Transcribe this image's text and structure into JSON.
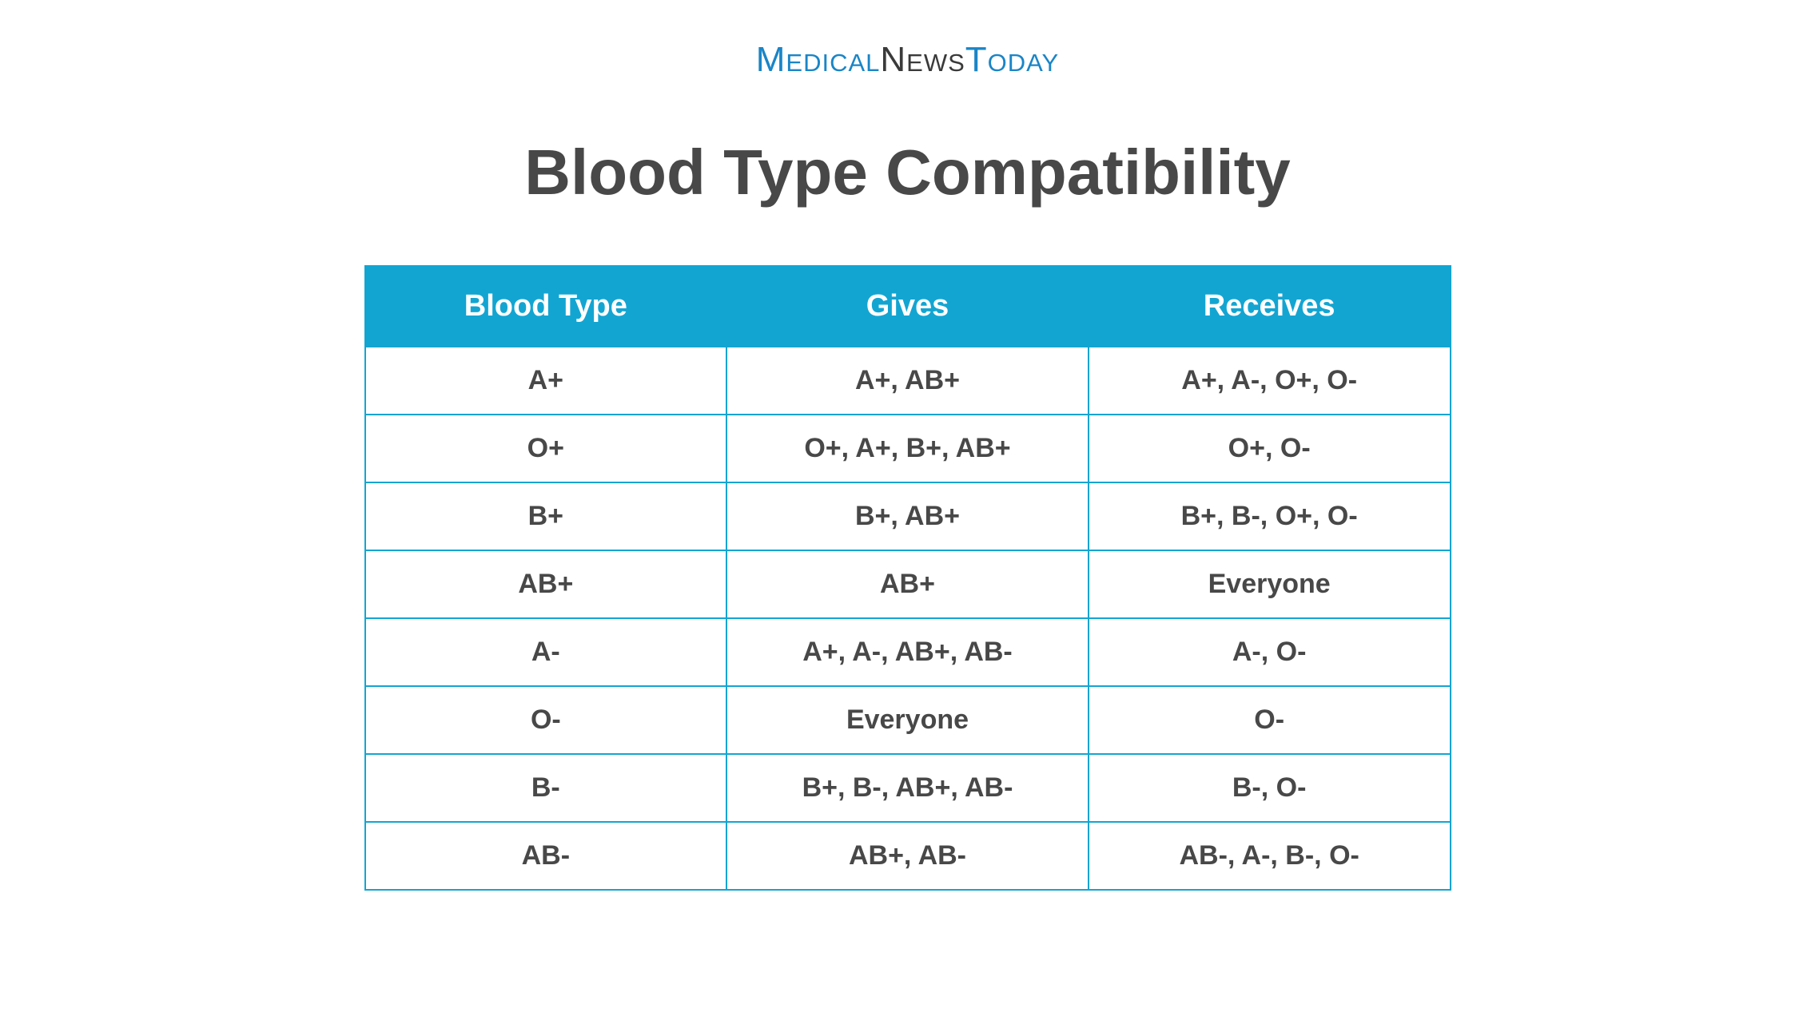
{
  "logo": {
    "part1": "Medical",
    "part2": "News",
    "part3": "Today"
  },
  "title": "Blood Type Compatibility",
  "table": {
    "type": "table",
    "header_bg": "#13a5d2",
    "header_text_color": "#ffffff",
    "border_color": "#13a5d2",
    "cell_bg": "#ffffff",
    "cell_text_color": "#484848",
    "header_fontsize": 38,
    "cell_fontsize": 34,
    "columns": [
      "Blood Type",
      "Gives",
      "Receives"
    ],
    "rows": [
      [
        "A+",
        "A+, AB+",
        "A+, A-, O+, O-"
      ],
      [
        "O+",
        "O+, A+, B+, AB+",
        "O+, O-"
      ],
      [
        "B+",
        "B+, AB+",
        "B+, B-, O+, O-"
      ],
      [
        "AB+",
        "AB+",
        "Everyone"
      ],
      [
        "A-",
        "A+, A-, AB+, AB-",
        "A-, O-"
      ],
      [
        "O-",
        "Everyone",
        "O-"
      ],
      [
        "B-",
        "B+, B-, AB+, AB-",
        "B-, O-"
      ],
      [
        "AB-",
        "AB+, AB-",
        "AB-, A-, B-, O-"
      ]
    ]
  },
  "colors": {
    "logo_blue": "#1a85c7",
    "logo_dark": "#3a3a3a",
    "title_color": "#484848",
    "background": "#ffffff"
  }
}
